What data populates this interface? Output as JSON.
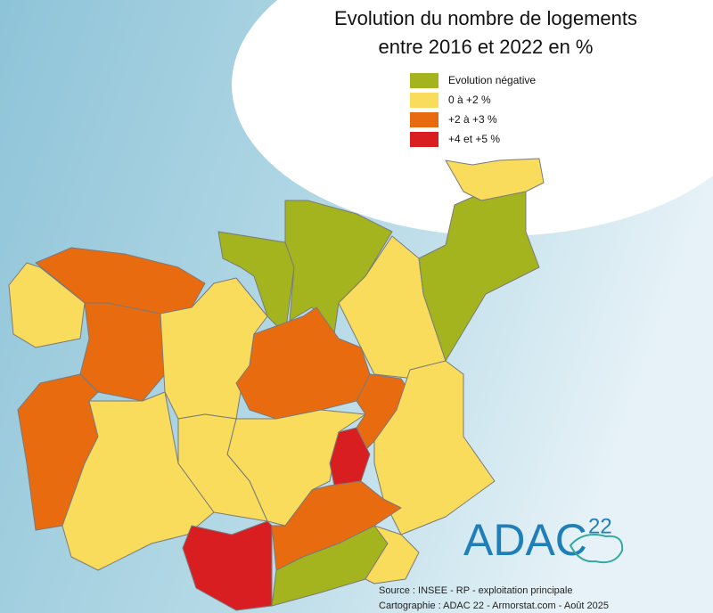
{
  "title": [
    "Evolution du nombre de logements",
    "entre 2016 et 2022 en %"
  ],
  "legend": [
    {
      "label": "Evolution négative",
      "color": "#a4b41f"
    },
    {
      "label": "0 à +2 %",
      "color": "#f9dc5c"
    },
    {
      "label": "+2 à +3 %",
      "color": "#e96b10"
    },
    {
      "label": "+4 et +5 %",
      "color": "#d91e22"
    }
  ],
  "logo": {
    "text": "ADAC",
    "superscript": "22"
  },
  "source": [
    "Source : INSEE - RP - exploitation principale",
    "Cartographie : ADAC 22 - Armorstat.com - Août 2025"
  ]
}
